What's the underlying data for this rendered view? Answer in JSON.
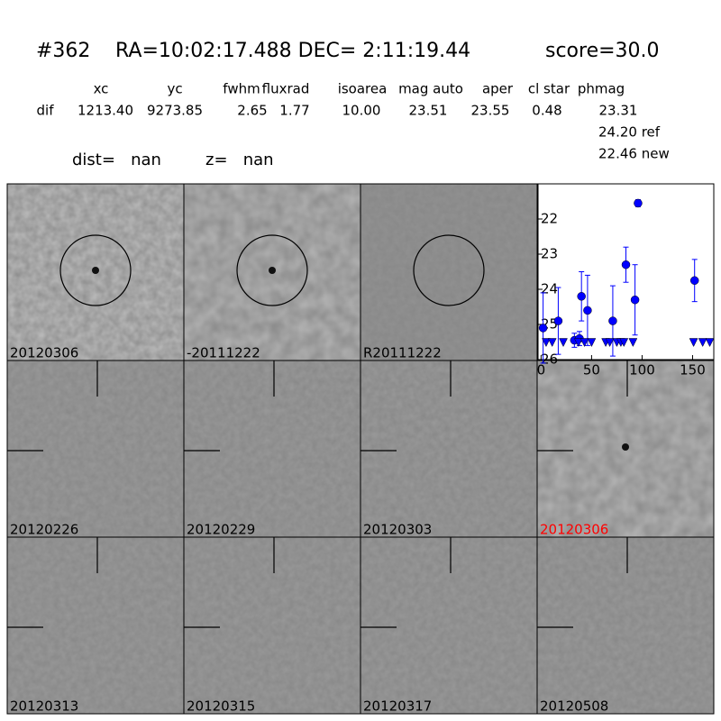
{
  "header": {
    "id": "#362",
    "coords": "RA=10:02:17.488 DEC= 2:11:19.44",
    "score": "score=30.0"
  },
  "table": {
    "columns": [
      "xc",
      "yc",
      "fwhm",
      "fluxrad",
      "isoarea",
      "mag auto",
      "aper",
      "cl star",
      "phmag"
    ],
    "rows": [
      [
        "dif",
        "1213.40",
        "9273.85",
        "2.65",
        "1.77",
        "10.00",
        "23.51",
        "23.55",
        "0.48",
        "23.31"
      ]
    ],
    "extra": [
      "24.20 ref",
      "22.46 new"
    ]
  },
  "dist": "dist=   nan",
  "z": "z=   nan",
  "stamps": [
    {
      "label": "20120306"
    },
    {
      "label": "-20111222"
    },
    {
      "label": "R20111222"
    },
    {
      "label": "20120226"
    },
    {
      "label": "20120229"
    },
    {
      "label": "20120303"
    },
    {
      "label": "20120306",
      "color": "red"
    },
    {
      "label": "20120313"
    },
    {
      "label": "20120315"
    },
    {
      "label": "20120317"
    },
    {
      "label": "20120508"
    }
  ],
  "chart_data": {
    "type": "scatter",
    "xlim": [
      -3,
      171
    ],
    "xticks": [
      0,
      50,
      100,
      150
    ],
    "ylim": [
      26,
      21
    ],
    "yticks": [
      22,
      23,
      24,
      25,
      26
    ],
    "series": [
      {
        "color": "#0000ff",
        "marker": "circle",
        "x": [
          2,
          17,
          33,
          38,
          40,
          46,
          71,
          84,
          93,
          96,
          152
        ],
        "values": [
          25.1,
          24.9,
          25.45,
          25.4,
          24.2,
          24.6,
          24.9,
          23.3,
          24.3,
          21.55,
          23.75
        ],
        "errors": [
          1.0,
          0.95,
          0.2,
          0.2,
          0.7,
          1.0,
          1.0,
          0.5,
          1.0,
          0.1,
          0.6
        ]
      },
      {
        "color": "#0000ff",
        "marker": "triangle",
        "x": [
          5,
          11,
          22,
          37,
          43,
          50,
          64,
          68,
          75,
          79,
          82,
          91,
          151,
          160,
          167
        ],
        "values": [
          25.5,
          25.5,
          25.5,
          25.5,
          25.5,
          25.5,
          25.5,
          25.5,
          25.5,
          25.5,
          25.5,
          25.5,
          25.5,
          25.5,
          25.5
        ]
      }
    ]
  }
}
